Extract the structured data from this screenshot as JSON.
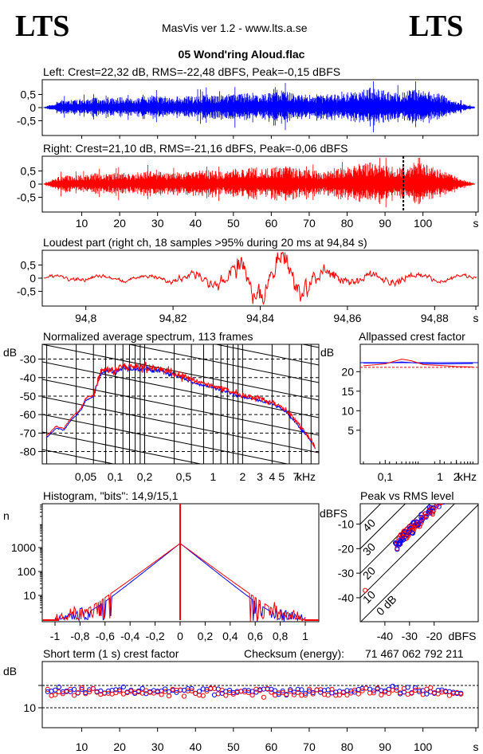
{
  "header": {
    "logo_left": "LTS",
    "logo_right": "LTS",
    "app_title": "MasVis ver 1.2 - www.lts.a.se",
    "file_name": "05 Wond'ring Aloud.flac"
  },
  "colors": {
    "left": "#0000ff",
    "right": "#ff0000",
    "grid": "#000000"
  },
  "panels": {
    "left_title": "Left: Crest=22,32 dB, RMS=-22,48 dBFS, Peak=-0,15 dBFS",
    "right_title": "Right: Crest=21,10 dB, RMS=-21,16 dBFS, Peak=-0,06 dBFS",
    "loudest_title": "Loudest part (right ch, 18 samples >95% during 20 ms at 94,84 s)",
    "spectrum_title": "Normalized average spectrum, 113 frames",
    "allpass_title": "Allpassed crest factor",
    "histogram_title": "Histogram, \"bits\": 14,9/15,1",
    "peakrms_title": "Peak vs RMS level",
    "shortterm_title": "Short term (1 s) crest factor",
    "checksum_label": "Checksum (energy):",
    "checksum_value": "71 467 062 792 211"
  },
  "chart_data": [
    {
      "type": "line",
      "name": "waveform-left",
      "ylim": [
        -1,
        1
      ],
      "yticks": [
        "0,5",
        "0",
        "-0,5"
      ],
      "duration_s": 111,
      "envelope": [
        0.02,
        0.12,
        0.28,
        0.3,
        0.32,
        0.3,
        0.35,
        0.4,
        0.33,
        0.36,
        0.42,
        0.38,
        0.35,
        0.4,
        0.45,
        0.5,
        0.42,
        0.38,
        0.4,
        0.45,
        0.42,
        0.46,
        0.5,
        0.45,
        0.48,
        0.52,
        0.5,
        0.55,
        0.6,
        0.58,
        0.55,
        0.58,
        0.65,
        0.6,
        0.55,
        0.52,
        0.5,
        0.48,
        0.45,
        0.5,
        0.55,
        0.6,
        0.65,
        0.7,
        0.85,
        0.7,
        0.65,
        0.6,
        0.55,
        0.68,
        0.75,
        0.7,
        0.62,
        0.55,
        0.45,
        0.3,
        0.2,
        0.1,
        0.04
      ]
    },
    {
      "type": "line",
      "name": "waveform-right",
      "ylim": [
        -1,
        1
      ],
      "yticks": [
        "0,5",
        "0",
        "-0,5"
      ],
      "xticks": [
        "10",
        "20",
        "30",
        "40",
        "50",
        "60",
        "70",
        "80",
        "90",
        "100",
        "s"
      ],
      "duration_s": 111,
      "marker_s": 94.84,
      "envelope": [
        0.02,
        0.15,
        0.3,
        0.35,
        0.32,
        0.36,
        0.38,
        0.42,
        0.36,
        0.4,
        0.45,
        0.42,
        0.4,
        0.45,
        0.5,
        0.52,
        0.46,
        0.42,
        0.45,
        0.5,
        0.48,
        0.5,
        0.55,
        0.5,
        0.52,
        0.58,
        0.6,
        0.65,
        0.7,
        0.62,
        0.6,
        0.65,
        0.72,
        0.68,
        0.62,
        0.58,
        0.55,
        0.5,
        0.48,
        0.55,
        0.6,
        0.65,
        0.7,
        0.75,
        0.85,
        0.75,
        0.7,
        0.65,
        0.6,
        0.72,
        0.95,
        0.8,
        0.7,
        0.6,
        0.5,
        0.35,
        0.22,
        0.1,
        0.04
      ]
    },
    {
      "type": "line",
      "name": "loudest-part",
      "xlim": [
        94.79,
        94.89
      ],
      "ylim": [
        -1,
        1
      ],
      "yticks": [
        "0,5",
        "0",
        "-0,5"
      ],
      "xticks": [
        "94,8",
        "94,82",
        "94,84",
        "94,86",
        "94,88",
        "s"
      ]
    },
    {
      "type": "line",
      "name": "spectrum",
      "ylabel": "dB",
      "xlabel": "kHz",
      "yticks": [
        "-30",
        "-40",
        "-50",
        "-60",
        "-70",
        "-80"
      ],
      "xticks": [
        "0,05",
        "0,1",
        "0,2",
        "0,5",
        "1",
        "2",
        "3",
        "4",
        "5",
        "7",
        "kHz"
      ],
      "curve": [
        [
          0.02,
          -72
        ],
        [
          0.025,
          -67
        ],
        [
          0.03,
          -68
        ],
        [
          0.035,
          -63
        ],
        [
          0.04,
          -60
        ],
        [
          0.045,
          -57
        ],
        [
          0.05,
          -52
        ],
        [
          0.06,
          -50
        ],
        [
          0.07,
          -38
        ],
        [
          0.08,
          -36
        ],
        [
          0.1,
          -37
        ],
        [
          0.12,
          -34
        ],
        [
          0.15,
          -35
        ],
        [
          0.2,
          -35
        ],
        [
          0.3,
          -36
        ],
        [
          0.4,
          -38
        ],
        [
          0.5,
          -40
        ],
        [
          0.7,
          -43
        ],
        [
          1,
          -45
        ],
        [
          1.5,
          -48
        ],
        [
          2,
          -50
        ],
        [
          3,
          -52
        ],
        [
          4,
          -54
        ],
        [
          5,
          -56
        ],
        [
          6,
          -60
        ],
        [
          7,
          -64
        ],
        [
          8,
          -68
        ],
        [
          9,
          -71
        ],
        [
          10,
          -74
        ],
        [
          11,
          -78
        ]
      ]
    },
    {
      "type": "line",
      "name": "allpassed-crest",
      "ylabel": "dB",
      "xlabel": "kHz",
      "yticks": [
        "20",
        "15",
        "10",
        "5"
      ],
      "xticks": [
        "0,1",
        "1",
        "2",
        "kHz"
      ],
      "left_level": 22.3,
      "right_level": 21.1,
      "right_curve": [
        [
          0.04,
          21.5
        ],
        [
          0.1,
          22
        ],
        [
          0.2,
          23.2
        ],
        [
          0.3,
          22.8
        ],
        [
          0.5,
          21.8
        ],
        [
          1,
          21.6
        ],
        [
          2,
          21.3
        ],
        [
          4,
          21.2
        ]
      ],
      "left_curve": [
        [
          0.04,
          22.2
        ],
        [
          0.1,
          22.2
        ],
        [
          0.2,
          22.5
        ],
        [
          0.5,
          22.1
        ],
        [
          1,
          22.0
        ],
        [
          4,
          22.1
        ]
      ]
    },
    {
      "type": "line",
      "name": "histogram",
      "ylabel": "n",
      "yticks": [
        "1000",
        "100",
        "10"
      ],
      "xticks": [
        "-1",
        "-0,8",
        "-0,6",
        "-0,4",
        "-0,2",
        "0",
        "0,2",
        "0,4",
        "0,6",
        "0,8",
        "1"
      ],
      "peak_count": 1500
    },
    {
      "type": "scatter",
      "name": "peak-vs-rms",
      "ylabel": "dBFS",
      "xlabel": "dBFS",
      "yticks": [
        "-10",
        "-20",
        "-30",
        "-40"
      ],
      "xticks": [
        "-40",
        "-30",
        "-20",
        "dBFS"
      ],
      "diagonal_labels": [
        "40",
        "30",
        "20",
        "10",
        "0 dB"
      ]
    },
    {
      "type": "scatter",
      "name": "short-term-crest",
      "ylabel": "dB",
      "yticks": [
        "10"
      ],
      "xticks": [
        "10",
        "20",
        "30",
        "40",
        "50",
        "60",
        "70",
        "80",
        "90",
        "100",
        "s"
      ],
      "left_mean": 17.5,
      "right_mean": 17.0
    }
  ]
}
